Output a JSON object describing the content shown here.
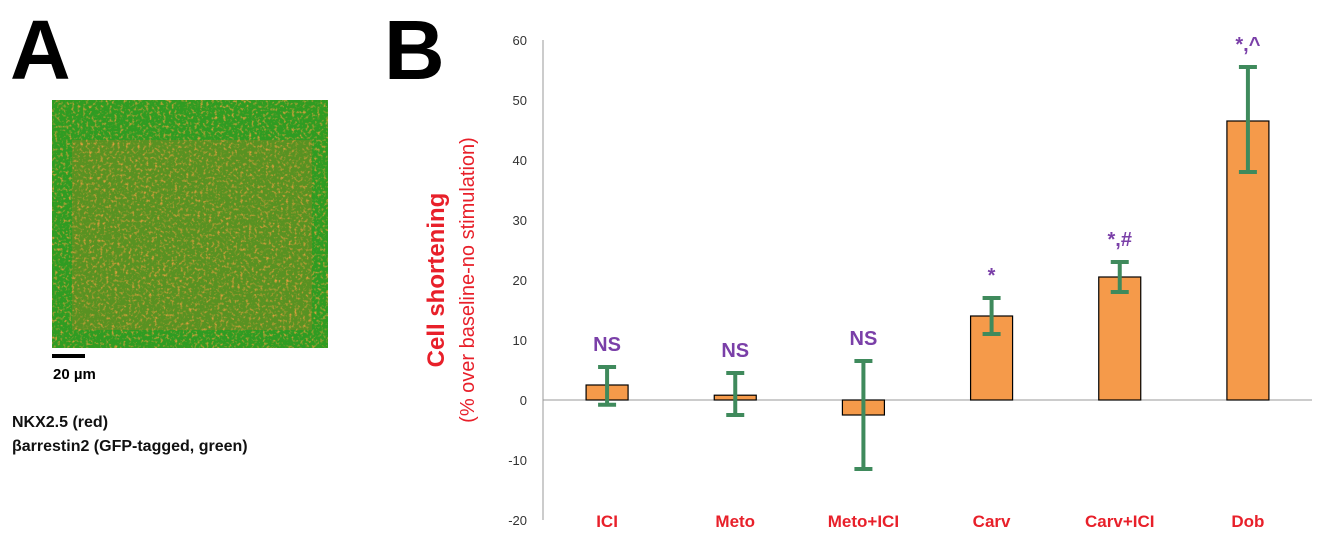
{
  "panel_a": {
    "letter": "A",
    "scale_label": "20 µm",
    "caption_lines": [
      "NKX2.5 (red)",
      "βarrestin2 (GFP-tagged, green)"
    ]
  },
  "panel_b": {
    "letter": "B"
  },
  "colors": {
    "bar_fill": "#f59a4a",
    "bar_stroke": "#000000",
    "error_bar": "#3f8a5c",
    "category_text": "#e8202a",
    "significance_text": "#7a3fa8",
    "ylabel_text": "#e8202a"
  },
  "chart_data": {
    "type": "bar",
    "categories": [
      "ICI",
      "Meto",
      "Meto+ICI",
      "Carv",
      "Carv+ICI",
      "Dob"
    ],
    "values": [
      2.5,
      0.8,
      -2.5,
      14,
      20.5,
      46.5
    ],
    "error_upper": [
      5.5,
      4.5,
      6.5,
      17,
      23,
      55.5
    ],
    "error_lower": [
      -0.8,
      -2.5,
      -11.5,
      11,
      18,
      38
    ],
    "significance": [
      "NS",
      "NS",
      "NS",
      "*",
      "*,#",
      "*,^"
    ],
    "ylabel": "Cell shortening",
    "ylabel_sub": "(% over baseline-no stimulation)",
    "ylim": [
      -20,
      60
    ],
    "yticks": [
      -20,
      -10,
      0,
      10,
      20,
      30,
      40,
      50,
      60
    ],
    "grid": false
  }
}
